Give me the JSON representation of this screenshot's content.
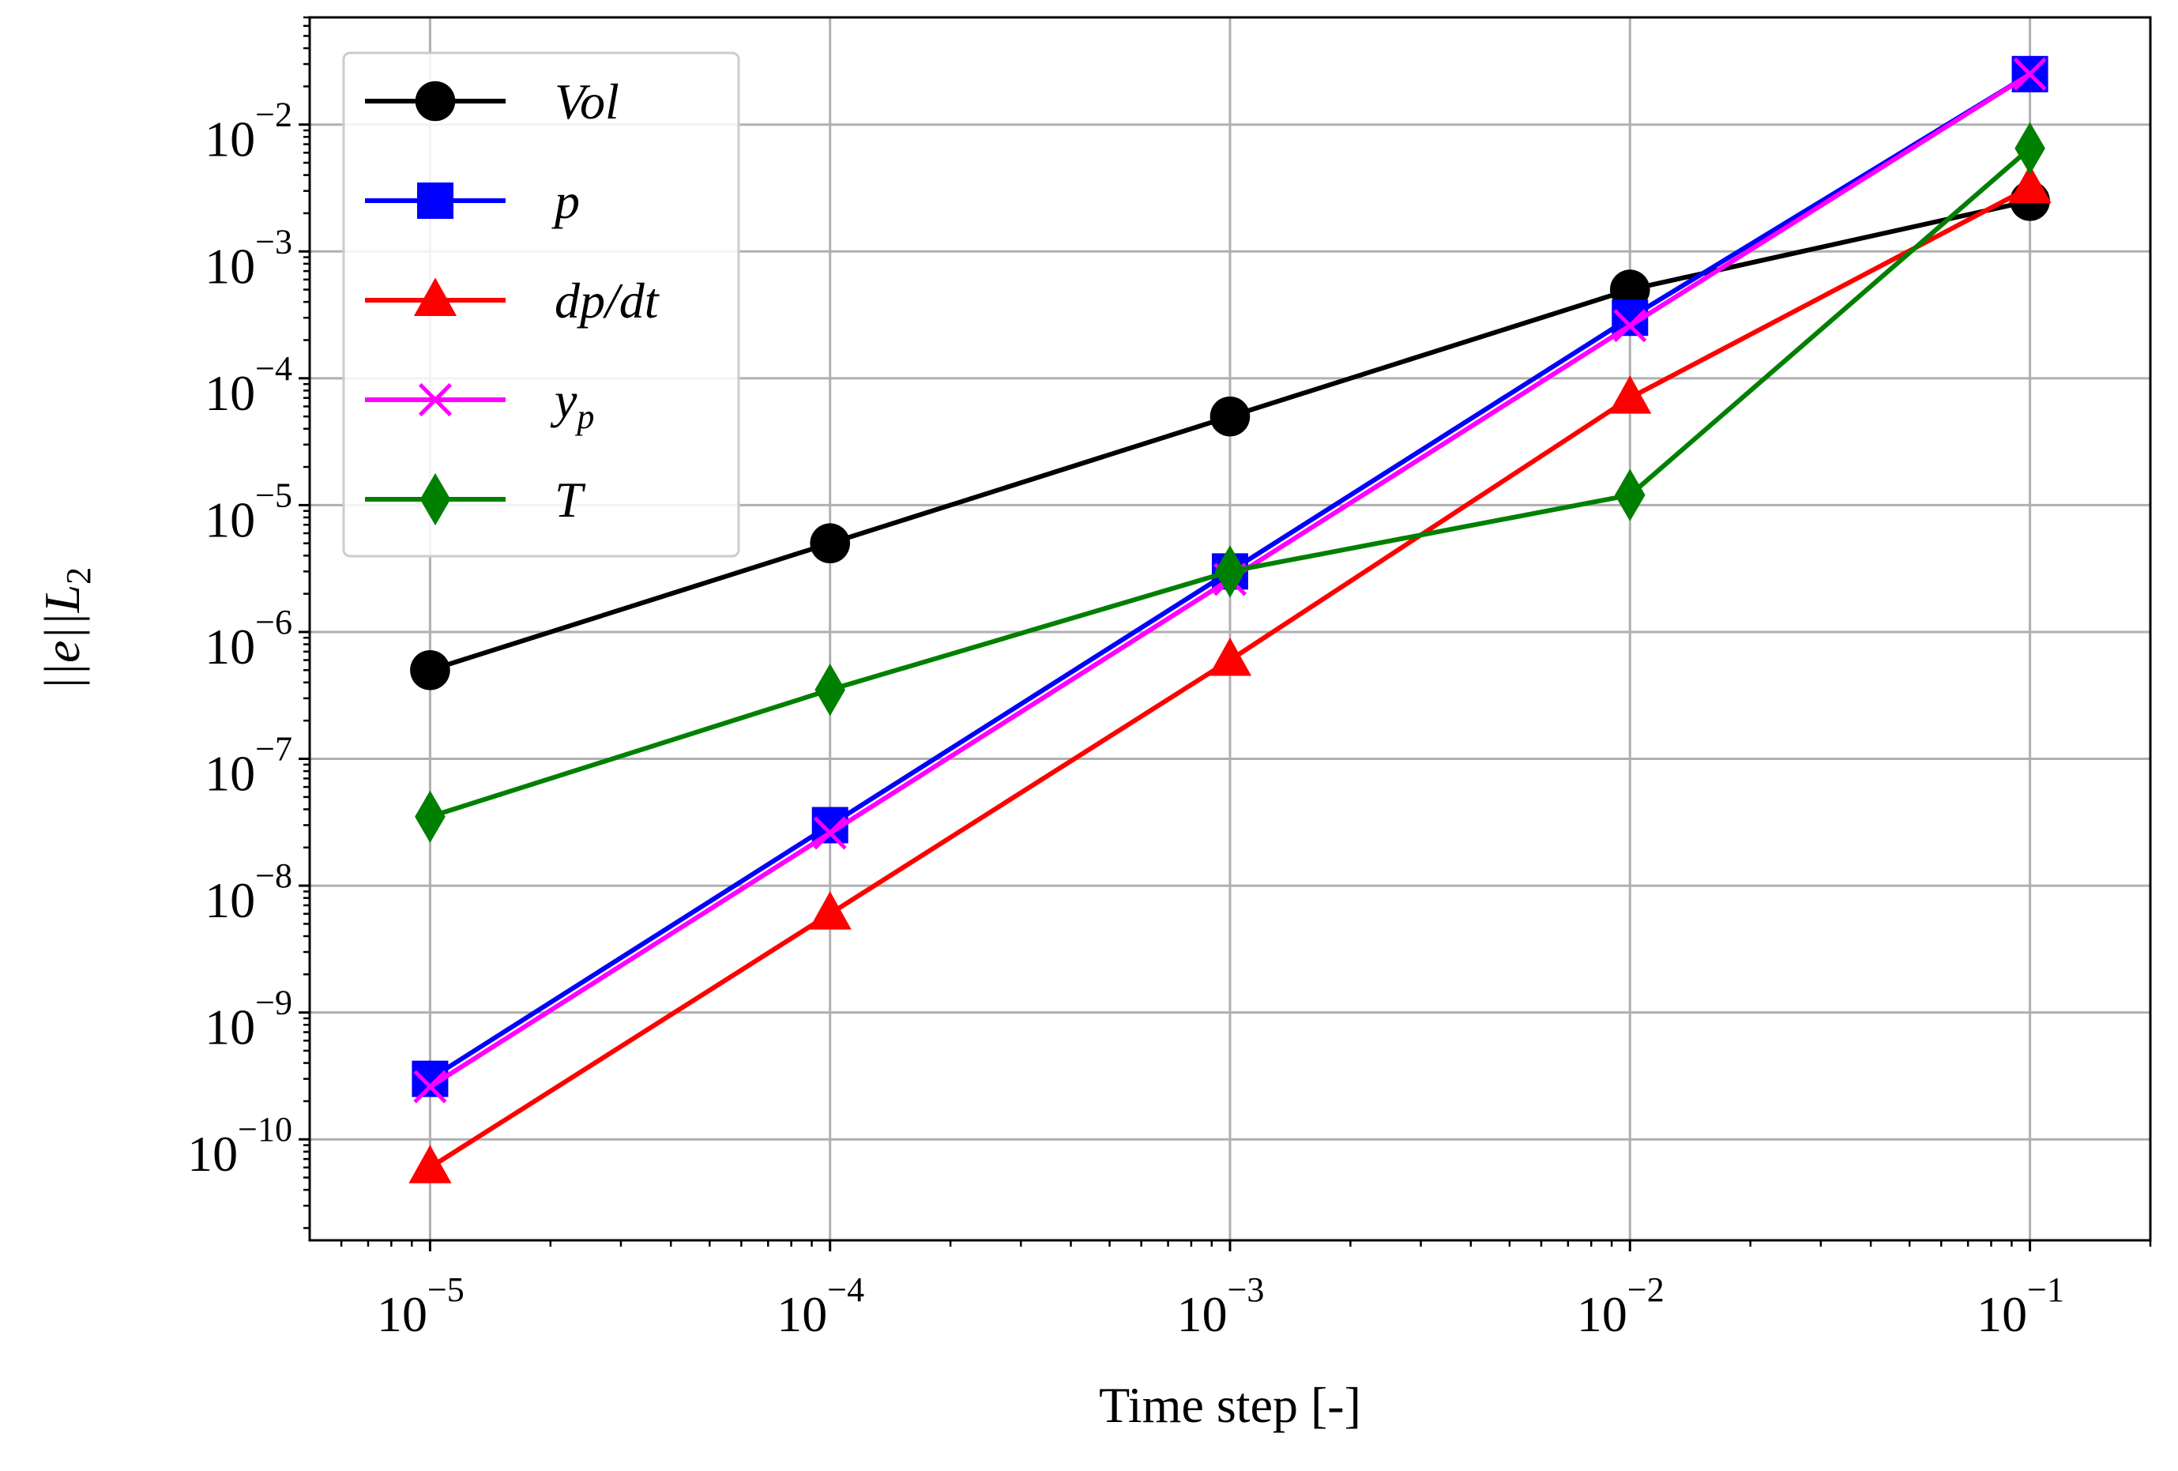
{
  "chart_data": {
    "type": "line",
    "title": "",
    "xlabel": "Time step [-]",
    "ylabel": "||e||L2",
    "ylabel_main": "||e||L",
    "ylabel_sub": "2",
    "x_scale": "log",
    "y_scale": "log",
    "xlim": [
      5e-06,
      0.2
    ],
    "ylim": [
      1.6e-11,
      0.07
    ],
    "grid": true,
    "legend_position": "top-left",
    "x": [
      1e-05,
      0.0001,
      0.001,
      0.01,
      0.1
    ],
    "x_ticks": [
      {
        "value": 1e-05,
        "base": "10",
        "exp": "−5"
      },
      {
        "value": 0.0001,
        "base": "10",
        "exp": "−4"
      },
      {
        "value": 0.001,
        "base": "10",
        "exp": "−3"
      },
      {
        "value": 0.01,
        "base": "10",
        "exp": "−2"
      },
      {
        "value": 0.1,
        "base": "10",
        "exp": "−1"
      }
    ],
    "y_ticks": [
      {
        "value": 1e-10,
        "base": "10",
        "exp": "−10"
      },
      {
        "value": 1e-09,
        "base": "10",
        "exp": "−9"
      },
      {
        "value": 1e-08,
        "base": "10",
        "exp": "−8"
      },
      {
        "value": 1e-07,
        "base": "10",
        "exp": "−7"
      },
      {
        "value": 1e-06,
        "base": "10",
        "exp": "−6"
      },
      {
        "value": 1e-05,
        "base": "10",
        "exp": "−5"
      },
      {
        "value": 0.0001,
        "base": "10",
        "exp": "−4"
      },
      {
        "value": 0.001,
        "base": "10",
        "exp": "−3"
      },
      {
        "value": 0.01,
        "base": "10",
        "exp": "−2"
      }
    ],
    "series": [
      {
        "name": "Vol",
        "label_main": "Vol",
        "label_sub": "",
        "color": "#000000",
        "marker": "circle",
        "values": [
          5e-07,
          5e-06,
          5e-05,
          0.0005,
          0.0025
        ]
      },
      {
        "name": "p",
        "label_main": "p",
        "label_sub": "",
        "color": "#0000ff",
        "marker": "square",
        "values": [
          3e-10,
          3e-08,
          3e-06,
          0.0003,
          0.025
        ]
      },
      {
        "name": "dp/dt",
        "label_main": "dp/dt",
        "label_sub": "",
        "color": "#ff0000",
        "marker": "triangle",
        "values": [
          6e-11,
          6e-09,
          6e-07,
          7e-05,
          0.0032
        ]
      },
      {
        "name": "yp",
        "label_main": "y",
        "label_sub": "p",
        "color": "#ff00ff",
        "marker": "x",
        "values": [
          2.6e-10,
          2.6e-08,
          2.6e-06,
          0.00026,
          0.025
        ]
      },
      {
        "name": "T",
        "label_main": "T",
        "label_sub": "",
        "color": "#008000",
        "marker": "diamond",
        "values": [
          3.5e-08,
          3.5e-07,
          3e-06,
          1.2e-05,
          0.0065
        ]
      }
    ]
  }
}
